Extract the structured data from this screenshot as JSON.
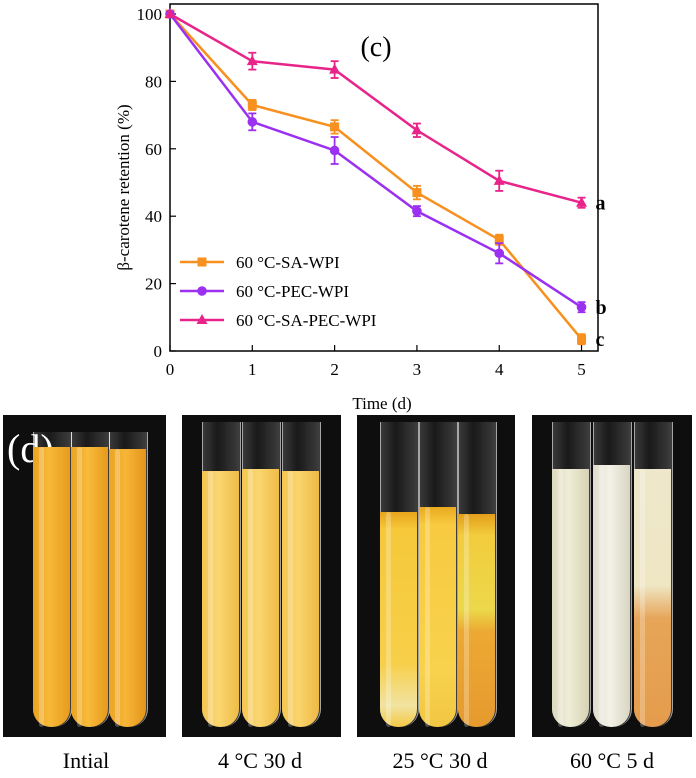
{
  "chart_data": {
    "type": "line",
    "panel_label": "(c)",
    "xlabel": "Time (d)",
    "ylabel": "β-carotene retention (%)",
    "x": [
      0,
      1,
      2,
      3,
      4,
      5
    ],
    "xticks": [
      "0",
      "1",
      "2",
      "3",
      "4",
      "5"
    ],
    "yticks": [
      "0",
      "20",
      "40",
      "60",
      "80",
      "100"
    ],
    "xlim": [
      0,
      5.2
    ],
    "ylim": [
      0,
      100
    ],
    "legend_position": "lower-left",
    "series": [
      {
        "name": "60 °C-SA-WPI",
        "color": "#f7901e",
        "marker": "square",
        "values": [
          100,
          73,
          66.5,
          47,
          33,
          3.5
        ],
        "errors": [
          0,
          1.5,
          2,
          2,
          1.5,
          1.5
        ],
        "letter": "c"
      },
      {
        "name": "60 °C-PEC-WPI",
        "color": "#9b30f0",
        "marker": "circle",
        "values": [
          100,
          68,
          59.5,
          41.5,
          29,
          13
        ],
        "errors": [
          0,
          2.5,
          4,
          1.5,
          3,
          1.5
        ],
        "letter": "b"
      },
      {
        "name": "60 °C-SA-PEC-WPI",
        "color": "#e8248a",
        "marker": "triangle",
        "values": [
          100,
          86,
          83.5,
          65.5,
          50.5,
          44
        ],
        "errors": [
          0,
          2.5,
          2.5,
          2,
          3,
          1.5
        ],
        "letter": "a"
      }
    ]
  },
  "photos": {
    "panel_label": "(d)",
    "labels": [
      "Intial",
      "4 °C 30 d",
      "25 °C  30 d",
      "60 °C  5 d"
    ]
  }
}
